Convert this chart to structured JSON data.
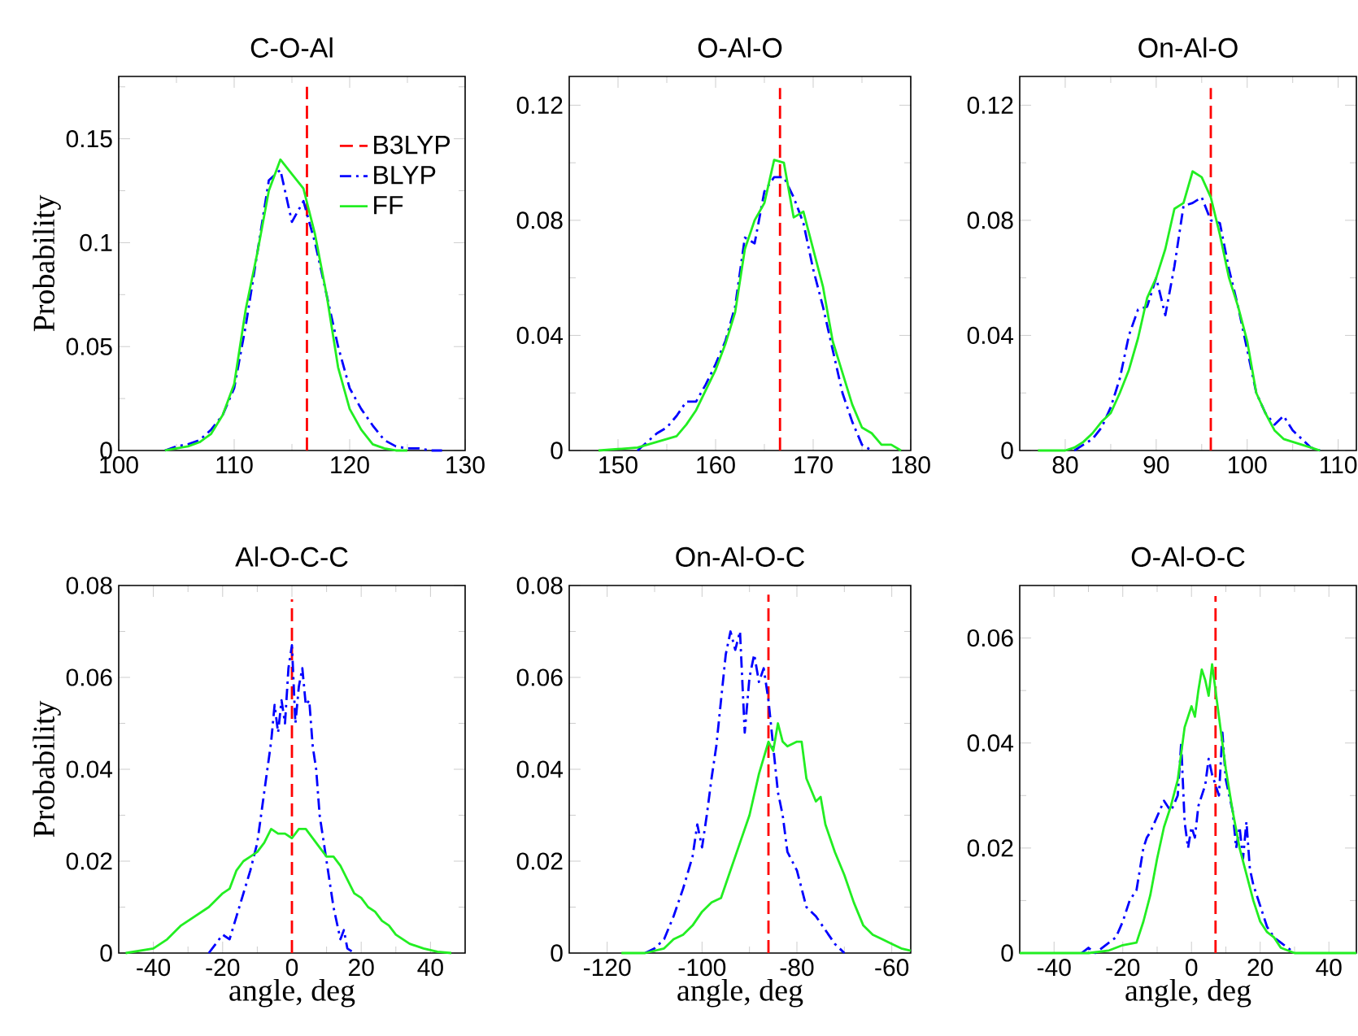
{
  "chart_data": [
    {
      "type": "line",
      "title": "C-O-Al",
      "ylabel": "Probability",
      "xlim": [
        100,
        130
      ],
      "ylim": [
        0,
        0.18
      ],
      "legend": "top right",
      "xticks": [
        100,
        {
          "value": 105,
          "label": null
        },
        110,
        {
          "value": 115,
          "label": null
        },
        120,
        {
          "value": 125,
          "label": null
        },
        130
      ],
      "yticks": [
        0,
        {
          "value": 0.025,
          "label": null
        },
        0.05,
        {
          "value": 0.075,
          "label": null
        },
        0.1,
        {
          "value": 0.125,
          "label": null
        },
        0.15,
        {
          "value": 0.175,
          "label": null
        }
      ],
      "series": [
        {
          "name": "B3LYP",
          "color": "#ff0000",
          "line_style": "dashed",
          "x": [
            116.3,
            116.3
          ],
          "values": [
            0,
            0.175
          ]
        },
        {
          "name": "BLYP",
          "color": "#0000ff",
          "line_style": "dashdot",
          "x": [
            104,
            105,
            106,
            107,
            108,
            109,
            110,
            111,
            112,
            113,
            114,
            115,
            116,
            117,
            118,
            119,
            120,
            121,
            122,
            123,
            124,
            125,
            126,
            127,
            128
          ],
          "values": [
            0,
            0.002,
            0.003,
            0.005,
            0.01,
            0.017,
            0.03,
            0.06,
            0.095,
            0.13,
            0.135,
            0.11,
            0.12,
            0.1,
            0.075,
            0.05,
            0.03,
            0.02,
            0.012,
            0.005,
            0.002,
            0.001,
            0.001,
            0,
            0
          ]
        },
        {
          "name": "FF",
          "color": "#22ee22",
          "line_style": "solid",
          "x": [
            104,
            105,
            106,
            107,
            108,
            109,
            110,
            111,
            112,
            113,
            114,
            115,
            116,
            117,
            118,
            119,
            120,
            121,
            122,
            123,
            124,
            125
          ],
          "values": [
            0,
            0.001,
            0.002,
            0.004,
            0.008,
            0.017,
            0.032,
            0.068,
            0.095,
            0.125,
            0.14,
            0.133,
            0.126,
            0.104,
            0.075,
            0.04,
            0.02,
            0.01,
            0.003,
            0.001,
            0,
            0
          ]
        }
      ]
    },
    {
      "type": "line",
      "title": "O-Al-O",
      "xlim": [
        145,
        180
      ],
      "ylim": [
        0,
        0.13
      ],
      "xticks": [
        150,
        {
          "value": 155,
          "label": null
        },
        160,
        {
          "value": 165,
          "label": null
        },
        170,
        {
          "value": 175,
          "label": null
        },
        180
      ],
      "yticks": [
        0,
        {
          "value": 0.02,
          "label": null
        },
        0.04,
        {
          "value": 0.06,
          "label": null
        },
        0.08,
        {
          "value": 0.1,
          "label": null
        },
        0.12
      ],
      "series": [
        {
          "color": "#ff0000",
          "line_style": "dashed",
          "x": [
            166.6,
            166.6
          ],
          "values": [
            0,
            0.126
          ]
        },
        {
          "color": "#0000ff",
          "line_style": "dashdot",
          "x": [
            152,
            153,
            154,
            155,
            156,
            157,
            158,
            159,
            160,
            161,
            162,
            163,
            164,
            165,
            166,
            167,
            168,
            169,
            170,
            171,
            172,
            173,
            174,
            175,
            176
          ],
          "values": [
            0,
            0.003,
            0.006,
            0.008,
            0.012,
            0.017,
            0.017,
            0.023,
            0.03,
            0.038,
            0.05,
            0.074,
            0.072,
            0.09,
            0.095,
            0.095,
            0.088,
            0.079,
            0.063,
            0.05,
            0.035,
            0.02,
            0.01,
            0.002,
            0
          ]
        },
        {
          "color": "#22ee22",
          "line_style": "solid",
          "x": [
            148,
            150,
            152,
            154,
            156,
            157,
            158,
            160,
            161,
            162,
            163,
            164,
            165,
            166,
            167,
            168,
            169,
            170,
            171,
            172,
            173,
            174,
            175,
            176,
            177,
            178,
            179
          ],
          "values": [
            0,
            0.0005,
            0.001,
            0.003,
            0.005,
            0.009,
            0.014,
            0.028,
            0.037,
            0.048,
            0.07,
            0.08,
            0.086,
            0.101,
            0.1,
            0.081,
            0.083,
            0.07,
            0.057,
            0.038,
            0.027,
            0.016,
            0.008,
            0.006,
            0.002,
            0.002,
            0
          ]
        }
      ]
    },
    {
      "type": "line",
      "title": "On-Al-O",
      "xlim": [
        75,
        112
      ],
      "ylim": [
        0,
        0.13
      ],
      "xticks": [
        80,
        {
          "value": 85,
          "label": null
        },
        90,
        {
          "value": 95,
          "label": null
        },
        100,
        {
          "value": 105,
          "label": null
        },
        110
      ],
      "yticks": [
        0,
        {
          "value": 0.02,
          "label": null
        },
        0.04,
        {
          "value": 0.06,
          "label": null
        },
        0.08,
        {
          "value": 0.1,
          "label": null
        },
        0.12
      ],
      "series": [
        {
          "color": "#ff0000",
          "line_style": "dashed",
          "x": [
            96,
            96
          ],
          "values": [
            0,
            0.126
          ]
        },
        {
          "color": "#0000ff",
          "line_style": "dashdot",
          "x": [
            81,
            82,
            83,
            84,
            85,
            86,
            87,
            88,
            89,
            90,
            91,
            92,
            93,
            94,
            95,
            96,
            97,
            98,
            99,
            100,
            101,
            102,
            103,
            104,
            105,
            106,
            107,
            108
          ],
          "values": [
            0,
            0.002,
            0.004,
            0.008,
            0.015,
            0.025,
            0.04,
            0.049,
            0.05,
            0.06,
            0.047,
            0.064,
            0.085,
            0.086,
            0.088,
            0.08,
            0.079,
            0.063,
            0.05,
            0.035,
            0.02,
            0.013,
            0.009,
            0.012,
            0.007,
            0.004,
            0.001,
            0
          ]
        },
        {
          "color": "#22ee22",
          "line_style": "solid",
          "x": [
            77,
            80,
            81,
            82,
            83,
            84,
            85,
            86,
            87,
            88,
            89,
            90,
            91,
            92,
            93,
            94,
            95,
            96,
            97,
            98,
            99,
            100,
            101,
            102,
            103,
            104,
            105,
            106,
            107,
            108
          ],
          "values": [
            0,
            0,
            0.001,
            0.003,
            0.006,
            0.01,
            0.013,
            0.02,
            0.028,
            0.039,
            0.053,
            0.06,
            0.07,
            0.084,
            0.086,
            0.097,
            0.095,
            0.088,
            0.075,
            0.06,
            0.05,
            0.038,
            0.02,
            0.013,
            0.007,
            0.004,
            0.003,
            0.002,
            0.001,
            0
          ]
        }
      ]
    },
    {
      "type": "line",
      "title": "Al-O-C-C",
      "xlabel": "angle, deg",
      "ylabel": "Probability",
      "xlim": [
        -50,
        50
      ],
      "ylim": [
        0,
        0.08
      ],
      "xticks": [
        -40,
        {
          "value": -30,
          "label": null
        },
        -20,
        {
          "value": -10,
          "label": null
        },
        0,
        {
          "value": 10,
          "label": null
        },
        20,
        {
          "value": 30,
          "label": null
        },
        40
      ],
      "yticks": [
        0,
        {
          "value": 0.01,
          "label": null
        },
        0.02,
        {
          "value": 0.03,
          "label": null
        },
        0.04,
        {
          "value": 0.05,
          "label": null
        },
        0.06,
        {
          "value": 0.07,
          "label": null
        },
        0.08
      ],
      "series": [
        {
          "color": "#ff0000",
          "line_style": "dashed",
          "x": [
            0,
            0
          ],
          "values": [
            0,
            0.077
          ]
        },
        {
          "color": "#0000ff",
          "line_style": "dashdot",
          "x": [
            -24,
            -22,
            -20,
            -18,
            -16,
            -14,
            -12,
            -10,
            -8,
            -6,
            -5,
            -4,
            -3,
            -2,
            -1,
            0,
            1,
            2,
            3,
            4,
            5,
            6,
            7,
            8,
            10,
            12,
            14,
            15,
            16,
            18
          ],
          "values": [
            0,
            0.002,
            0.004,
            0.003,
            0.008,
            0.013,
            0.018,
            0.024,
            0.035,
            0.046,
            0.054,
            0.048,
            0.055,
            0.05,
            0.062,
            0.067,
            0.05,
            0.058,
            0.062,
            0.054,
            0.055,
            0.045,
            0.04,
            0.03,
            0.02,
            0.01,
            0.003,
            0.005,
            0.001,
            0
          ]
        },
        {
          "color": "#22ee22",
          "line_style": "solid",
          "x": [
            -48,
            -44,
            -40,
            -36,
            -32,
            -28,
            -24,
            -20,
            -18,
            -16,
            -14,
            -12,
            -10,
            -8,
            -6,
            -4,
            -2,
            0,
            2,
            4,
            6,
            8,
            10,
            12,
            14,
            16,
            18,
            20,
            22,
            24,
            26,
            28,
            30,
            34,
            38,
            42,
            46
          ],
          "values": [
            0,
            0.0005,
            0.001,
            0.003,
            0.006,
            0.008,
            0.01,
            0.013,
            0.014,
            0.018,
            0.02,
            0.021,
            0.022,
            0.024,
            0.027,
            0.026,
            0.026,
            0.025,
            0.027,
            0.027,
            0.025,
            0.023,
            0.021,
            0.021,
            0.019,
            0.016,
            0.013,
            0.012,
            0.01,
            0.009,
            0.007,
            0.006,
            0.004,
            0.002,
            0.001,
            0.0003,
            0
          ]
        }
      ]
    },
    {
      "type": "line",
      "title": "On-Al-O-C",
      "xlabel": "angle, deg",
      "xlim": [
        -128,
        -56
      ],
      "ylim": [
        0,
        0.08
      ],
      "xticks": [
        -120,
        {
          "value": -110,
          "label": null
        },
        -100,
        {
          "value": -90,
          "label": null
        },
        -80,
        {
          "value": -70,
          "label": null
        },
        -60
      ],
      "yticks": [
        0,
        {
          "value": 0.01,
          "label": null
        },
        0.02,
        {
          "value": 0.03,
          "label": null
        },
        0.04,
        {
          "value": 0.05,
          "label": null
        },
        0.06,
        {
          "value": 0.07,
          "label": null
        },
        0.08
      ],
      "series": [
        {
          "color": "#ff0000",
          "line_style": "dashed",
          "x": [
            -86,
            -86
          ],
          "values": [
            0,
            0.078
          ]
        },
        {
          "color": "#0000ff",
          "line_style": "dashdot",
          "x": [
            -112,
            -110,
            -108,
            -106,
            -104,
            -102,
            -101,
            -100,
            -99,
            -98,
            -97,
            -96,
            -95,
            -94,
            -93,
            -92,
            -91,
            -90,
            -89,
            -88,
            -87,
            -86,
            -85,
            -84,
            -83,
            -82,
            -80,
            -78,
            -76,
            -74,
            -72,
            -70
          ],
          "values": [
            0,
            0.001,
            0.003,
            0.008,
            0.014,
            0.021,
            0.028,
            0.023,
            0.03,
            0.038,
            0.045,
            0.055,
            0.065,
            0.07,
            0.066,
            0.07,
            0.048,
            0.06,
            0.065,
            0.059,
            0.062,
            0.055,
            0.045,
            0.035,
            0.03,
            0.022,
            0.018,
            0.01,
            0.008,
            0.005,
            0.002,
            0
          ]
        },
        {
          "color": "#22ee22",
          "line_style": "solid",
          "x": [
            -117,
            -112,
            -108,
            -106,
            -104,
            -102,
            -100,
            -98,
            -96,
            -94,
            -92,
            -90,
            -88,
            -86,
            -85,
            -84,
            -83,
            -82,
            -80,
            -79,
            -78,
            -76,
            -75,
            -74,
            -72,
            -70,
            -68,
            -66,
            -64,
            -62,
            -60,
            -58,
            -56
          ],
          "values": [
            0,
            0,
            0.001,
            0.003,
            0.004,
            0.006,
            0.009,
            0.011,
            0.012,
            0.018,
            0.024,
            0.03,
            0.039,
            0.046,
            0.044,
            0.05,
            0.046,
            0.045,
            0.046,
            0.046,
            0.038,
            0.033,
            0.034,
            0.028,
            0.022,
            0.017,
            0.011,
            0.006,
            0.004,
            0.003,
            0.002,
            0.001,
            0.0005
          ]
        }
      ]
    },
    {
      "type": "line",
      "title": "O-Al-O-C",
      "xlabel": "angle, deg",
      "xlim": [
        -50,
        48
      ],
      "ylim": [
        0,
        0.07
      ],
      "xticks": [
        -40,
        {
          "value": -30,
          "label": null
        },
        -20,
        {
          "value": -10,
          "label": null
        },
        0,
        {
          "value": 10,
          "label": null
        },
        20,
        {
          "value": 30,
          "label": null
        },
        40
      ],
      "yticks": [
        0,
        {
          "value": 0.01,
          "label": null
        },
        0.02,
        {
          "value": 0.03,
          "label": null
        },
        0.04,
        {
          "value": 0.05,
          "label": null
        },
        0.06
      ],
      "series": [
        {
          "color": "#ff0000",
          "line_style": "dashed",
          "x": [
            7,
            7
          ],
          "values": [
            0,
            0.068
          ]
        },
        {
          "color": "#0000ff",
          "line_style": "dashdot",
          "x": [
            -32,
            -30,
            -28,
            -26,
            -24,
            -22,
            -20,
            -18,
            -16,
            -14,
            -13,
            -12,
            -10,
            -8,
            -6,
            -4,
            -3,
            -2,
            -1,
            0,
            1,
            2,
            4,
            5,
            6,
            8,
            9,
            10,
            12,
            13,
            14,
            15,
            16,
            17,
            18,
            20,
            22,
            24,
            26,
            28,
            30
          ],
          "values": [
            0,
            0.001,
            0,
            0.001,
            0.002,
            0.003,
            0.006,
            0.01,
            0.012,
            0.02,
            0.022,
            0.023,
            0.026,
            0.029,
            0.027,
            0.03,
            0.04,
            0.025,
            0.02,
            0.024,
            0.022,
            0.028,
            0.032,
            0.037,
            0.034,
            0.03,
            0.042,
            0.033,
            0.027,
            0.02,
            0.024,
            0.018,
            0.025,
            0.016,
            0.013,
            0.009,
            0.005,
            0.003,
            0.002,
            0.001,
            0
          ]
        },
        {
          "color": "#22ee22",
          "line_style": "solid",
          "x": [
            -50,
            -30,
            -24,
            -20,
            -16,
            -14,
            -12,
            -10,
            -8,
            -6,
            -4,
            -2,
            0,
            1,
            2,
            3,
            4,
            5,
            6,
            7,
            8,
            9,
            10,
            12,
            14,
            16,
            18,
            20,
            22,
            24,
            26,
            28,
            30,
            48
          ],
          "values": [
            0,
            0,
            0.0005,
            0.0015,
            0.002,
            0.006,
            0.011,
            0.018,
            0.024,
            0.028,
            0.033,
            0.043,
            0.047,
            0.045,
            0.05,
            0.054,
            0.052,
            0.049,
            0.055,
            0.05,
            0.045,
            0.04,
            0.035,
            0.027,
            0.02,
            0.015,
            0.01,
            0.006,
            0.004,
            0.003,
            0.001,
            0.0005,
            0,
            0
          ]
        }
      ]
    }
  ]
}
